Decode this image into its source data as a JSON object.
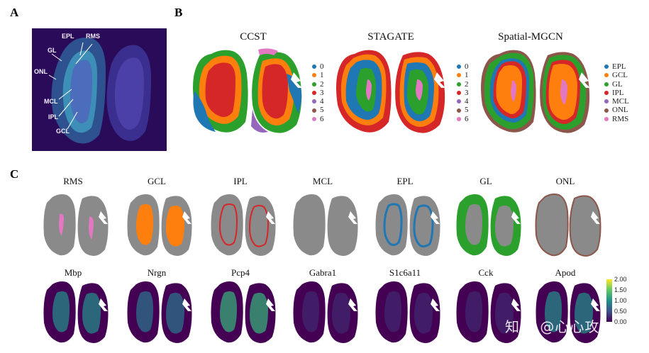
{
  "panels": {
    "a": "A",
    "b": "B",
    "c": "C"
  },
  "atlas": {
    "labels": [
      "EPL",
      "RMS",
      "GL",
      "ONL",
      "MCL",
      "IPL",
      "GCL"
    ]
  },
  "methods": [
    {
      "title": "CCST",
      "legend": [
        "0",
        "1",
        "2",
        "3",
        "4",
        "5",
        "6"
      ]
    },
    {
      "title": "STAGATE",
      "legend": [
        "0",
        "1",
        "2",
        "3",
        "4",
        "5",
        "6"
      ]
    },
    {
      "title": "Spatial-MGCN",
      "legend": [
        "EPL",
        "GCL",
        "GL",
        "IPL",
        "MCL",
        "ONL",
        "RMS"
      ]
    }
  ],
  "layers": [
    "RMS",
    "GCL",
    "IPL",
    "MCL",
    "EPL",
    "GL",
    "ONL"
  ],
  "genes": [
    "Mbp",
    "Nrgn",
    "Pcp4",
    "Gabra1",
    "S1c6a11",
    "Cck",
    "Apod"
  ],
  "colorbar": {
    "ticks": [
      "2.00",
      "1.50",
      "1.00",
      "0.50",
      "0.00"
    ]
  },
  "watermark": "知乎 @心心攻",
  "colors": {
    "c0": "#1f77b4",
    "c1": "#ff7f0e",
    "c2": "#2ca02c",
    "c3": "#d62728",
    "c4": "#9467bd",
    "c5": "#8c564b",
    "c6": "#e377c2",
    "gray": "#8a8a8a",
    "atlas_bg": "#2a0b5a",
    "viridis_low": "#440154"
  }
}
